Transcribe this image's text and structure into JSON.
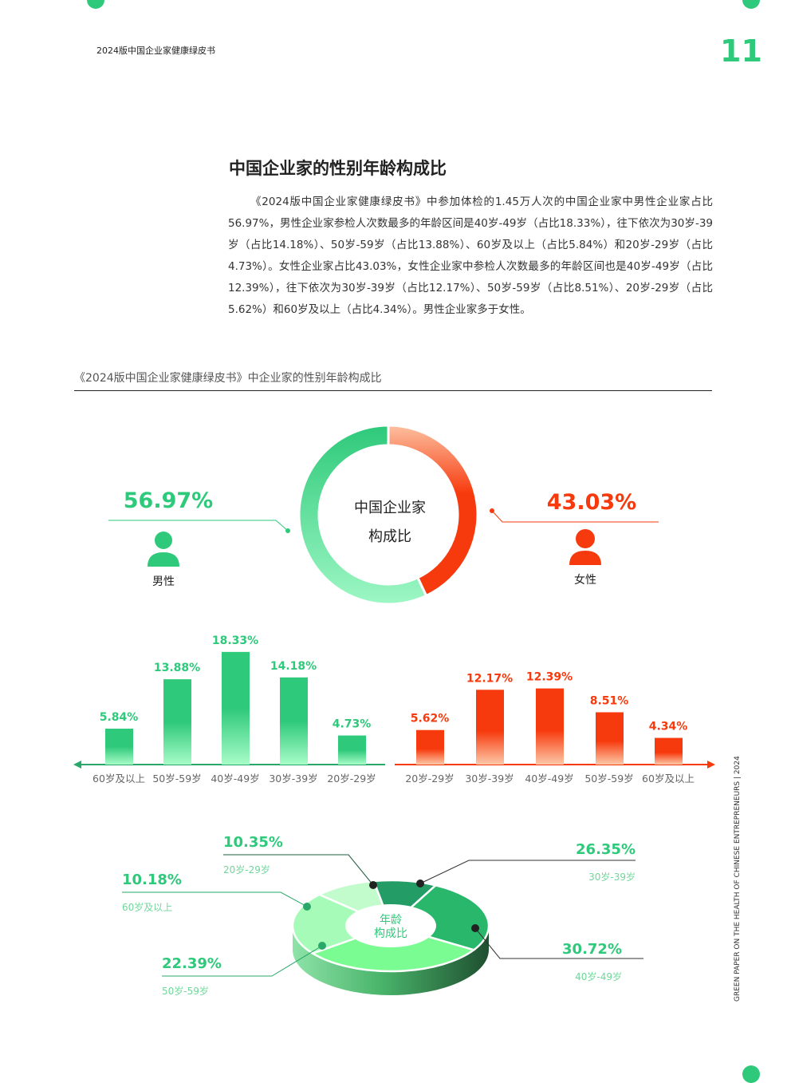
{
  "header": {
    "doc_title": "2024版中国企业家健康绿皮书",
    "page_number": "11"
  },
  "section": {
    "title": "中国企业家的性别年龄构成比",
    "paragraph": "《2024版中国企业家健康绿皮书》中参加体检的1.45万人次的中国企业家中男性企业家占比56.97%，男性企业家参检人次数最多的年龄区间是40岁-49岁（占比18.33%），往下依次为30岁-39岁（占比14.18%）、50岁-59岁（占比13.88%）、60岁及以上（占比5.84%）和20岁-29岁（占比4.73%）。女性企业家占比43.03%，女性企业家中参检人次数最多的年龄区间也是40岁-49岁（占比12.39%），往下依次为30岁-39岁（占比12.17%）、50岁-59岁（占比8.51%）、20岁-29岁（占比5.62%）和60岁及以上（占比4.34%）。男性企业家多于女性。"
  },
  "figure_caption": "《2024版中国企业家健康绿皮书》中企业家的性别年龄构成比",
  "side_text": "GREEN PAPER ON THE HEALTH OF CHINESE ENTREPRENEURS | 2024",
  "colors": {
    "green": "#2ec97a",
    "red": "#f73a0d"
  },
  "chart_data": [
    {
      "type": "pie",
      "title": "中国企业家构成比",
      "center_line1": "中国企业家",
      "center_line2": "构成比",
      "slices": [
        {
          "name": "男性",
          "value": 56.97,
          "label": "56.97%"
        },
        {
          "name": "女性",
          "value": 43.03,
          "label": "43.03%"
        }
      ]
    },
    {
      "type": "bar",
      "series_name": "男性",
      "categories": [
        "60岁及以上",
        "50岁-59岁",
        "40岁-49岁",
        "30岁-39岁",
        "20岁-29岁"
      ],
      "values": [
        5.84,
        13.88,
        18.33,
        14.18,
        4.73
      ],
      "labels": [
        "5.84%",
        "13.88%",
        "18.33%",
        "14.18%",
        "4.73%"
      ]
    },
    {
      "type": "bar",
      "series_name": "女性",
      "categories": [
        "20岁-29岁",
        "30岁-39岁",
        "40岁-49岁",
        "50岁-59岁",
        "60岁及以上"
      ],
      "values": [
        5.62,
        12.17,
        12.39,
        8.51,
        4.34
      ],
      "labels": [
        "5.62%",
        "12.17%",
        "12.39%",
        "8.51%",
        "4.34%"
      ]
    },
    {
      "type": "pie",
      "title": "年龄构成比",
      "center_line1": "年龄",
      "center_line2": "构成比",
      "slices": [
        {
          "name": "20岁-29岁",
          "value": 10.35,
          "label": "10.35%"
        },
        {
          "name": "30岁-39岁",
          "value": 26.35,
          "label": "26.35%"
        },
        {
          "name": "40岁-49岁",
          "value": 30.72,
          "label": "30.72%"
        },
        {
          "name": "50岁-59岁",
          "value": 22.39,
          "label": "22.39%"
        },
        {
          "name": "60岁及以上",
          "value": 10.18,
          "label": "10.18%"
        }
      ]
    }
  ]
}
